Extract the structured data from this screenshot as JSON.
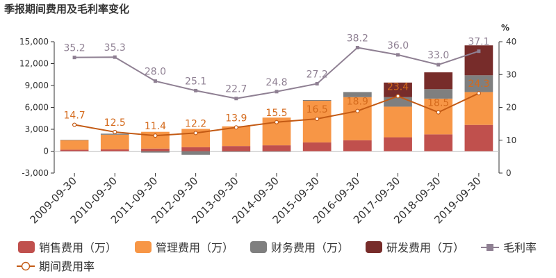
{
  "chart_data": {
    "type": "bar",
    "title": "季报期间费用及毛利率变化",
    "categories": [
      "2009-09-30",
      "2010-09-30",
      "2011-09-30",
      "2012-09-30",
      "2013-09-30",
      "2014-09-30",
      "2015-09-30",
      "2016-09-30",
      "2017-09-30",
      "2018-09-30",
      "2019-09-30"
    ],
    "series": [
      {
        "name": "销售费用（万）",
        "type": "bar",
        "axis": "left",
        "color": "#c0504d",
        "values": [
          200,
          250,
          350,
          550,
          700,
          800,
          1200,
          1500,
          1900,
          2300,
          3600
        ]
      },
      {
        "name": "管理费用（万）",
        "type": "bar",
        "axis": "left",
        "color": "#f79646",
        "values": [
          1300,
          2000,
          2300,
          2500,
          2700,
          3800,
          5700,
          5900,
          4200,
          4900,
          4500
        ]
      },
      {
        "name": "财务费用（万）",
        "type": "bar",
        "axis": "left",
        "color": "#7f7f7f",
        "values": [
          60,
          150,
          -200,
          -500,
          -100,
          -80,
          100,
          700,
          1300,
          1300,
          2300
        ]
      },
      {
        "name": "研发费用（万）",
        "type": "bar",
        "axis": "left",
        "color": "#772c2a",
        "values": [
          0,
          0,
          0,
          0,
          0,
          0,
          0,
          0,
          2000,
          2300,
          4100
        ]
      },
      {
        "name": "毛利率",
        "type": "line",
        "axis": "right",
        "color": "#8f8093",
        "label_color": "#8f8093",
        "values": [
          35.2,
          35.3,
          28.0,
          25.1,
          22.7,
          24.8,
          27.2,
          38.2,
          36.0,
          33.0,
          37.1
        ]
      },
      {
        "name": "期间费用率",
        "type": "line",
        "axis": "right",
        "color": "#c35a14",
        "label_color": "#d46a1c",
        "values": [
          14.7,
          12.5,
          11.4,
          12.2,
          13.9,
          15.5,
          16.5,
          18.9,
          23.4,
          18.5,
          24.3
        ]
      }
    ],
    "y_left": {
      "ticks": [
        -3000,
        0,
        3000,
        6000,
        9000,
        12000,
        15000
      ],
      "tick_labels": [
        "-3,000",
        "0",
        "3,000",
        "6,000",
        "9,000",
        "12,000",
        "15,000"
      ],
      "ylim": [
        -3000,
        15000
      ]
    },
    "y_right": {
      "unit": "%",
      "ticks": [
        0,
        10,
        20,
        30,
        40
      ],
      "ylim": [
        0,
        40
      ]
    },
    "legend_position": "bottom",
    "grid": false
  }
}
